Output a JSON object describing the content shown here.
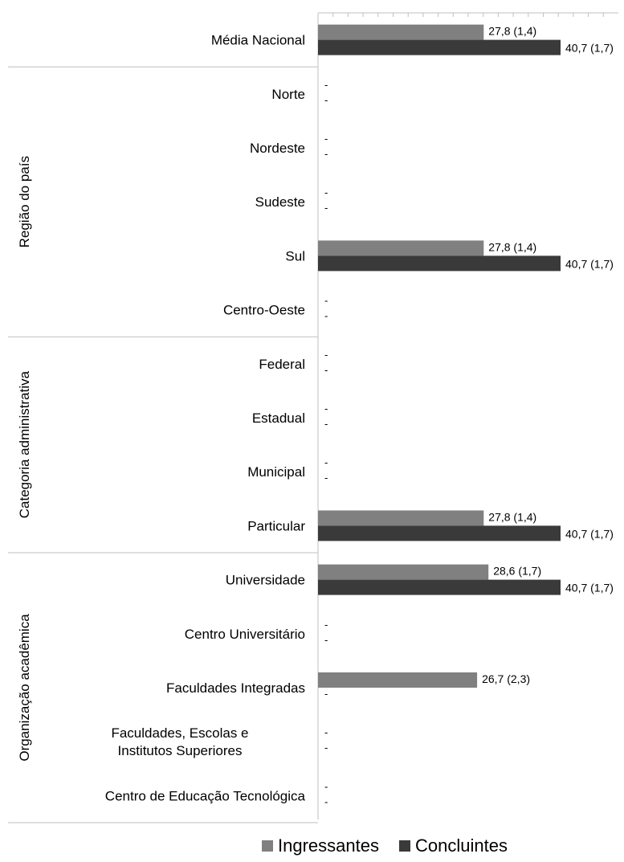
{
  "chart_data": {
    "type": "bar",
    "orientation": "horizontal",
    "title": "",
    "xlabel": "",
    "ylabel": "",
    "xlim": [
      0,
      40.7
    ],
    "legend_position": "bottom",
    "grid": false,
    "groups": [
      {
        "label": "",
        "items": [
          "Média Nacional"
        ]
      },
      {
        "label": "Região do país",
        "items": [
          "Norte",
          "Nordeste",
          "Sudeste",
          "Sul",
          "Centro-Oeste"
        ]
      },
      {
        "label": "Categoria administrativa",
        "items": [
          "Federal",
          "Estadual",
          "Municipal",
          "Particular"
        ]
      },
      {
        "label": "Organização acadêmica",
        "items": [
          "Universidade",
          "Centro Universitário",
          "Faculdades Integradas",
          "Faculdades, Escolas e Institutos Superiores",
          "Centro de Educação Tecnológica"
        ]
      }
    ],
    "categories": [
      [
        "Média Nacional"
      ],
      [
        "Norte"
      ],
      [
        "Nordeste"
      ],
      [
        "Sudeste"
      ],
      [
        "Sul"
      ],
      [
        "Centro-Oeste"
      ],
      [
        "Federal"
      ],
      [
        "Estadual"
      ],
      [
        "Municipal"
      ],
      [
        "Particular"
      ],
      [
        "Universidade"
      ],
      [
        "Centro Universitário"
      ],
      [
        "Faculdades Integradas"
      ],
      [
        "Faculdades, Escolas e",
        "Institutos Superiores"
      ],
      [
        "Centro de Educação Tecnológica"
      ]
    ],
    "series": [
      {
        "name": "Ingressantes",
        "color": "#808080",
        "values": [
          27.8,
          null,
          null,
          null,
          27.8,
          null,
          null,
          null,
          null,
          27.8,
          28.6,
          null,
          26.7,
          null,
          null
        ],
        "labels": [
          "27,8 (1,4)",
          "-",
          "-",
          "-",
          "27,8 (1,4)",
          "-",
          "-",
          "-",
          "-",
          "27,8 (1,4)",
          "28,6 (1,7)",
          "-",
          "26,7 (2,3)",
          "-",
          "-"
        ]
      },
      {
        "name": "Concluintes",
        "color": "#3a3a3a",
        "values": [
          40.7,
          null,
          null,
          null,
          40.7,
          null,
          null,
          null,
          null,
          40.7,
          40.7,
          null,
          null,
          null,
          null
        ],
        "labels": [
          "40,7 (1,7)",
          "-",
          "-",
          "-",
          "40,7 (1,7)",
          "-",
          "-",
          "-",
          "-",
          "40,7 (1,7)",
          "40,7 (1,7)",
          "-",
          "-",
          "-",
          "-"
        ]
      }
    ]
  }
}
